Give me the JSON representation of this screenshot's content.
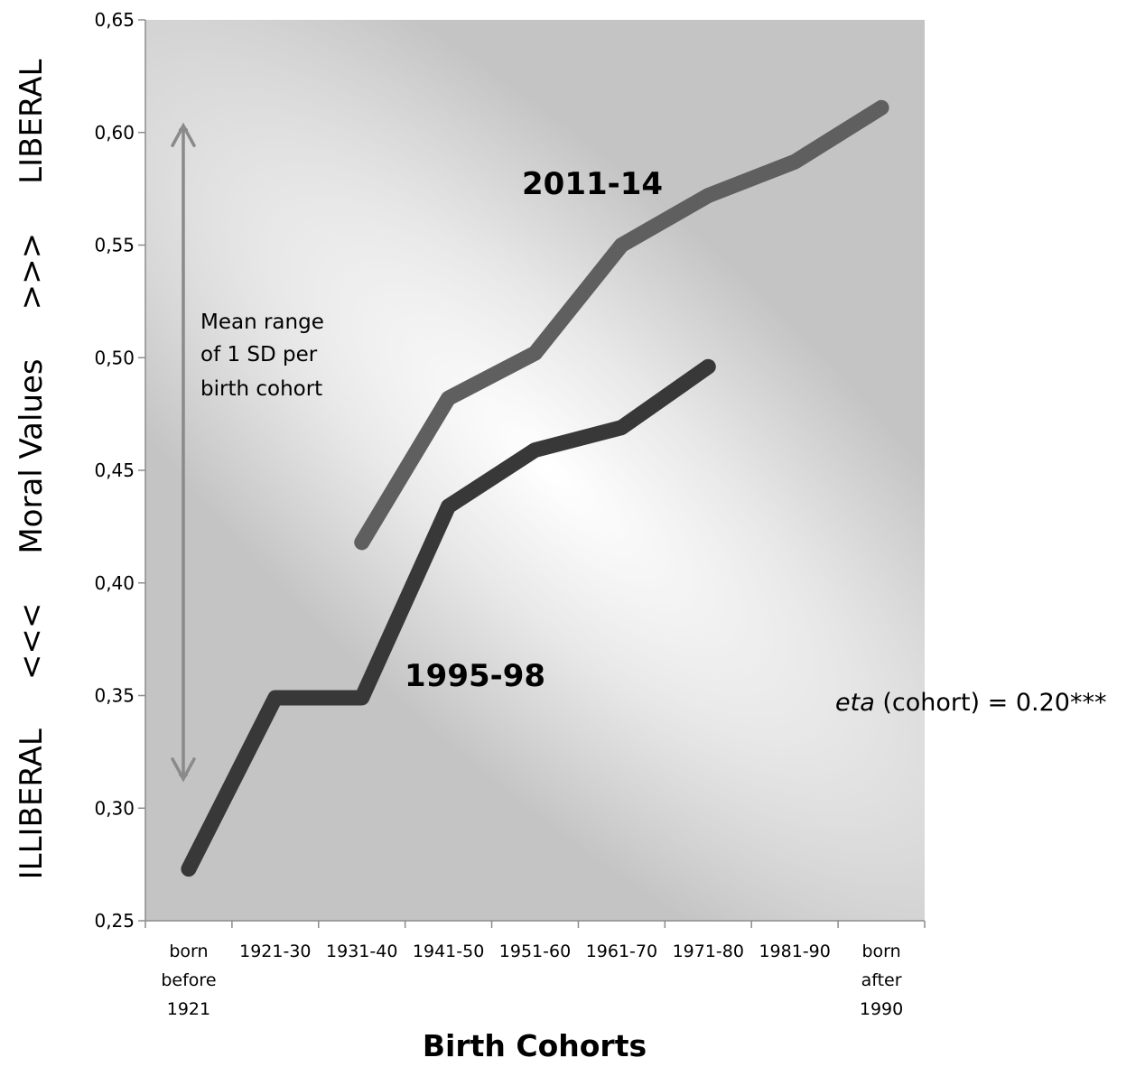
{
  "chart_data": {
    "type": "line",
    "categories": [
      [
        "born",
        "before",
        "1921"
      ],
      [
        "1921-30"
      ],
      [
        "1931-40"
      ],
      [
        "1941-50"
      ],
      [
        "1951-60"
      ],
      [
        "1961-70"
      ],
      [
        "1971-80"
      ],
      [
        "1981-90"
      ],
      [
        "born",
        "after",
        "1990"
      ]
    ],
    "series": [
      {
        "name": "2011-14",
        "color": "#5f5f5f",
        "values": [
          null,
          null,
          0.418,
          0.482,
          0.502,
          0.55,
          0.572,
          0.587,
          0.611
        ]
      },
      {
        "name": "1995-98",
        "color": "#383838",
        "values": [
          0.273,
          0.349,
          0.349,
          0.434,
          0.459,
          0.469,
          0.496,
          null,
          null
        ]
      }
    ],
    "xlabel": "Birth Cohorts",
    "ylabel": "ILLIBERAL     <<<     Moral Values     >>>     LIBERAL",
    "ylim": [
      0.25,
      0.65
    ],
    "yticks": [
      "0,25",
      "0,30",
      "0,35",
      "0,40",
      "0,45",
      "0,50",
      "0,55",
      "0,60",
      "0,65"
    ],
    "ytick_values": [
      0.25,
      0.3,
      0.35,
      0.4,
      0.45,
      0.5,
      0.55,
      0.6,
      0.65
    ],
    "sd_arrow": {
      "low": 0.313,
      "high": 0.603,
      "label_lines": [
        "Mean range",
        "of 1 SD per",
        "birth cohort"
      ]
    },
    "annotation": {
      "eta_italic": "eta",
      "eta_rest": " (cohort) = 0.20***"
    },
    "grid": false,
    "legend": "none"
  }
}
